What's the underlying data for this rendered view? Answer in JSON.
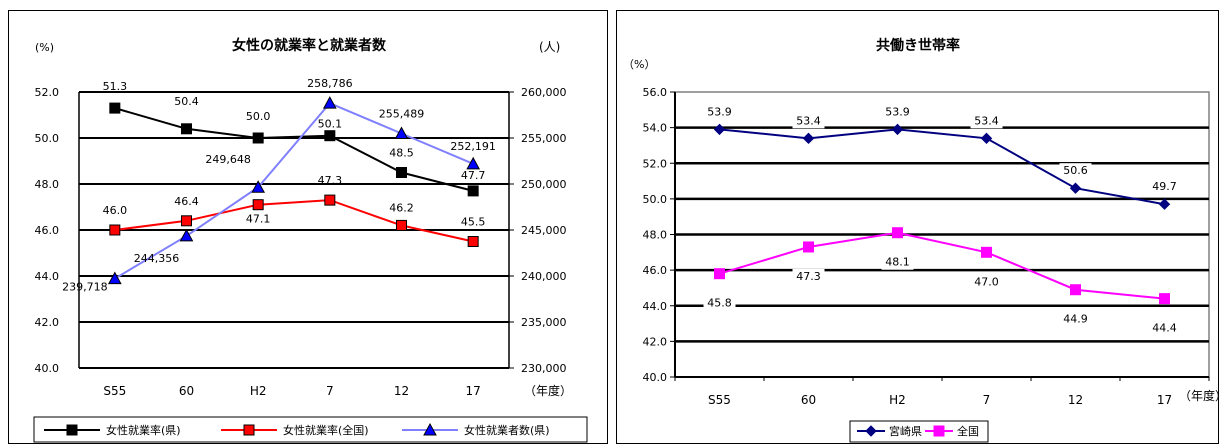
{
  "chart_data": [
    {
      "type": "line",
      "title": "女性の就業率と就業者数",
      "ylabel_left": "(%)",
      "ylabel_right": "(人)",
      "xlabel": "（年度）",
      "categories": [
        "S55",
        "60",
        "H2",
        "7",
        "12",
        "17"
      ],
      "ylim_left": [
        40.0,
        52.0
      ],
      "yticks_left": [
        "40.0",
        "42.0",
        "44.0",
        "46.0",
        "48.0",
        "50.0",
        "52.0"
      ],
      "ylim_right": [
        230000,
        260000
      ],
      "yticks_right": [
        "230,000",
        "235,000",
        "240,000",
        "245,000",
        "250,000",
        "255,000",
        "260,000"
      ],
      "grid": true,
      "legend_position": "bottom",
      "series": [
        {
          "name": "女性就業率(県)",
          "axis": "left",
          "color": "#000000",
          "marker": "square",
          "values": [
            51.3,
            50.4,
            50.0,
            50.1,
            48.5,
            47.7
          ],
          "labels": [
            "51.3",
            "50.4",
            "50.0",
            "50.1",
            "48.5",
            "47.7"
          ]
        },
        {
          "name": "女性就業率(全国)",
          "axis": "left",
          "color": "#ff0000",
          "marker": "square",
          "values": [
            46.0,
            46.4,
            47.1,
            47.3,
            46.2,
            45.5
          ],
          "labels": [
            "46.0",
            "46.4",
            "47.1",
            "47.3",
            "46.2",
            "45.5"
          ]
        },
        {
          "name": "女性就業者数(県)",
          "axis": "right",
          "color": "#8080ff",
          "marker": "triangle",
          "marker_color": "#0000ff",
          "values": [
            239718,
            244356,
            249648,
            258786,
            255489,
            252191
          ],
          "labels": [
            "239,718",
            "244,356",
            "249,648",
            "258,786",
            "255,489",
            "252,191"
          ]
        }
      ]
    },
    {
      "type": "line",
      "title": "共働き世帯率",
      "ylabel": "（%）",
      "xlabel": "（年度）",
      "categories": [
        "S55",
        "60",
        "H2",
        "7",
        "12",
        "17"
      ],
      "ylim": [
        40.0,
        56.0
      ],
      "yticks": [
        "40.0",
        "42.0",
        "44.0",
        "46.0",
        "48.0",
        "50.0",
        "52.0",
        "54.0",
        "56.0"
      ],
      "grid": true,
      "legend_position": "bottom",
      "series": [
        {
          "name": "宮崎県",
          "color": "#000080",
          "marker": "diamond",
          "values": [
            53.9,
            53.4,
            53.9,
            53.4,
            50.6,
            49.7
          ],
          "labels": [
            "53.9",
            "53.4",
            "53.9",
            "53.4",
            "50.6",
            "49.7"
          ]
        },
        {
          "name": "全国",
          "color": "#ff00ff",
          "marker": "square",
          "values": [
            45.8,
            47.3,
            48.1,
            47.0,
            44.9,
            44.4
          ],
          "labels": [
            "45.8",
            "47.3",
            "48.1",
            "47.0",
            "44.9",
            "44.4"
          ]
        }
      ]
    }
  ]
}
